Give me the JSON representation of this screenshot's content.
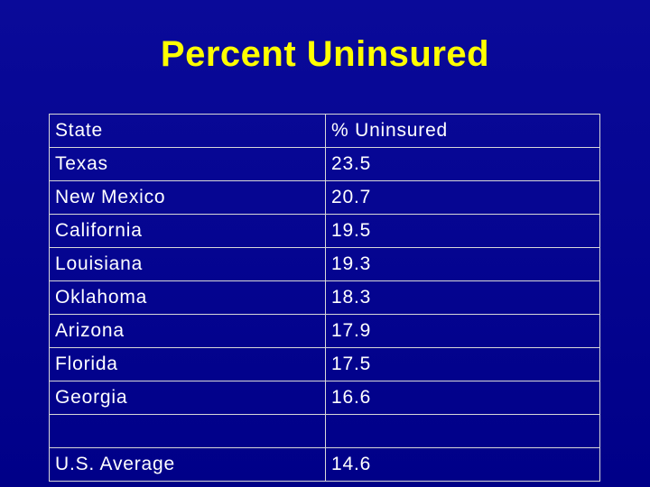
{
  "title": "Percent Uninsured",
  "table": {
    "headers": [
      "State",
      "% Uninsured"
    ],
    "rows": [
      [
        "Texas",
        "23.5"
      ],
      [
        "New Mexico",
        "20.7"
      ],
      [
        "California",
        "19.5"
      ],
      [
        "Louisiana",
        "19.3"
      ],
      [
        "Oklahoma",
        "18.3"
      ],
      [
        "Arizona",
        "17.9"
      ],
      [
        "Florida",
        "17.5"
      ],
      [
        "Georgia",
        "16.6"
      ],
      [
        "",
        ""
      ],
      [
        "U.S. Average",
        "14.6"
      ]
    ]
  },
  "colors": {
    "background": "#000088",
    "title": "#ffff00",
    "text": "#ffffff",
    "grid": "#d8d8d8"
  }
}
